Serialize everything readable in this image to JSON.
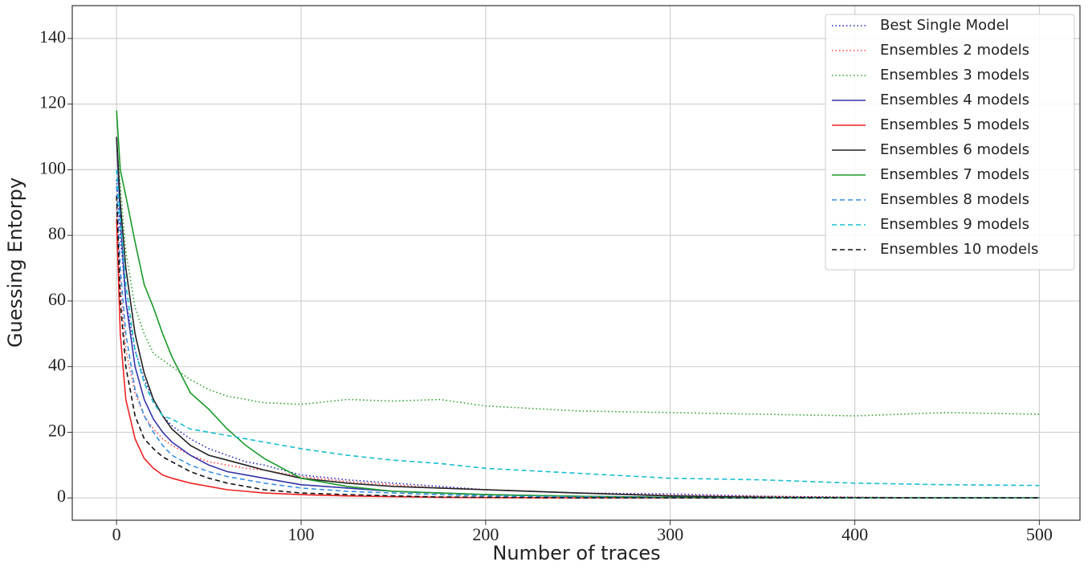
{
  "chart_data": {
    "type": "line",
    "xlabel": "Number of traces",
    "ylabel": "Guessing Entorpy",
    "x": [
      0,
      2,
      5,
      10,
      15,
      20,
      25,
      30,
      40,
      50,
      60,
      70,
      80,
      100,
      125,
      150,
      175,
      200,
      250,
      300,
      350,
      400,
      450,
      500
    ],
    "xlim": [
      -24,
      522
    ],
    "ylim": [
      -6.8,
      150
    ],
    "xticks": [
      0,
      100,
      200,
      300,
      400,
      500
    ],
    "yticks": [
      0,
      20,
      40,
      60,
      80,
      100,
      120,
      140
    ],
    "grid": true,
    "legend": "upper right",
    "series": [
      {
        "name": "Best Single Model",
        "color": "#1f1fbf",
        "dash": "dotted",
        "values": [
          97,
          80,
          60,
          45,
          36,
          30,
          25,
          22,
          18,
          15,
          13,
          11,
          10,
          7,
          5.5,
          4.5,
          3.5,
          2.5,
          1.5,
          1.2,
          0.5,
          0.2,
          0,
          0
        ]
      },
      {
        "name": "Ensembles 2 models",
        "color": "#ff4040",
        "dash": "dotted",
        "values": [
          88,
          65,
          45,
          32,
          25,
          21,
          18,
          16,
          13,
          11,
          10,
          9,
          8.5,
          6.5,
          5,
          4,
          3,
          2.5,
          1.5,
          0.8,
          0.5,
          0.2,
          0,
          0
        ]
      },
      {
        "name": "Ensembles 3 models",
        "color": "#2ca02c",
        "dash": "dotted",
        "values": [
          108,
          95,
          75,
          58,
          50,
          44,
          42,
          40,
          36,
          33,
          31,
          30,
          29,
          28.5,
          30,
          29.5,
          30,
          28,
          26.5,
          26,
          25.5,
          25,
          26,
          25.5
        ]
      },
      {
        "name": "Ensembles 4 models",
        "color": "#3333aa",
        "dash": "solid",
        "values": [
          110,
          85,
          60,
          40,
          30,
          24,
          20,
          17,
          13,
          10,
          8,
          7,
          6,
          4,
          3,
          2,
          1.5,
          1,
          0.5,
          0.2,
          0,
          0,
          0,
          0
        ]
      },
      {
        "name": "Ensembles 5 models",
        "color": "#ee2222",
        "dash": "solid",
        "values": [
          85,
          50,
          30,
          18,
          12,
          9,
          7,
          6,
          4.5,
          3.5,
          2.5,
          2,
          1.5,
          1,
          0.6,
          0.4,
          0.2,
          0.1,
          0,
          0,
          0,
          0,
          0,
          0
        ]
      },
      {
        "name": "Ensembles 6 models",
        "color": "#222222",
        "dash": "solid",
        "values": [
          110,
          90,
          70,
          50,
          38,
          30,
          25,
          21,
          16,
          13,
          11.5,
          10,
          8.5,
          6,
          4.5,
          3.5,
          3,
          2.5,
          1.5,
          0.6,
          0.2,
          0,
          0,
          0
        ]
      },
      {
        "name": "Ensembles 7 models",
        "color": "#1a9a2a",
        "dash": "solid",
        "values": [
          118,
          100,
          92,
          78,
          65,
          58,
          50,
          43,
          32,
          27,
          21,
          16,
          12,
          6,
          3.5,
          2,
          1.5,
          1,
          0.5,
          0.2,
          0,
          0,
          0,
          0
        ]
      },
      {
        "name": "Ensembles 8 models",
        "color": "#3a8ee6",
        "dash": "dashed",
        "values": [
          95,
          70,
          50,
          33,
          25,
          20,
          16,
          13,
          10,
          8,
          6.5,
          5.5,
          4.5,
          3,
          2,
          1.5,
          1,
          0.6,
          0.3,
          0.1,
          0,
          0,
          0,
          0
        ]
      },
      {
        "name": "Ensembles 9 models",
        "color": "#17becf",
        "dash": "dashed",
        "values": [
          100,
          85,
          65,
          45,
          35,
          29,
          25,
          24,
          21,
          20,
          19,
          18,
          17,
          15,
          13,
          11.5,
          10.5,
          9,
          7.5,
          6,
          5.5,
          4.5,
          4,
          3.8
        ]
      },
      {
        "name": "Ensembles 10 models",
        "color": "#111111",
        "dash": "dashed",
        "values": [
          92,
          60,
          40,
          25,
          18,
          15,
          12.5,
          11,
          8,
          6,
          4.5,
          3.5,
          2.5,
          1.5,
          1,
          0.6,
          0.3,
          0.2,
          0,
          0,
          0,
          0,
          0,
          0
        ]
      }
    ]
  }
}
